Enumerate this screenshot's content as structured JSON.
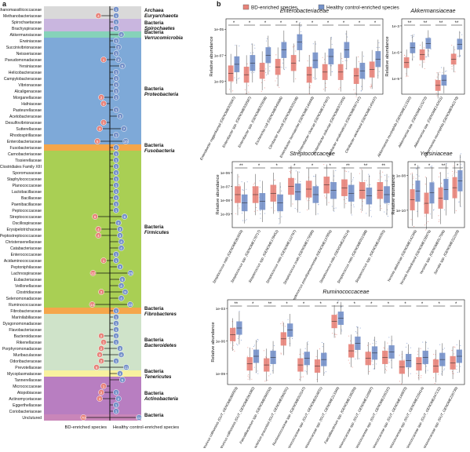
{
  "panels": {
    "a": "a",
    "b": "b"
  },
  "colors": {
    "bd": "#E8837A",
    "hc": "#7591C9",
    "proteo": "#7EA9D8",
    "firm": "#A9CF54",
    "bact": "#CFE3C9",
    "act": "#B87EC1",
    "verr": "#86D2B9",
    "fuso": "#F5A64B",
    "fibro": "#F5A64B",
    "teneri": "#F8F19F",
    "arch": "#D9D9D9",
    "spiro": "#C9B6DF",
    "unclass": "#C986B9"
  },
  "tree": {
    "x_labels": {
      "left": "BD-enriched species",
      "right": "Healthy control-enriched species"
    },
    "families": [
      {
        "name": "Methanomassiliicoccaceae",
        "bd": 0,
        "hc": 1
      },
      {
        "name": "Methanobacteriaceae",
        "bd": 4,
        "hc": 1
      },
      {
        "name": "Spirochaetaceae",
        "bd": 0,
        "hc": 1
      },
      {
        "name": "Brachyspiraceae",
        "bd": 0,
        "hc": 1
      },
      {
        "name": "Akkermansiaceae",
        "bd": 0,
        "hc": 4
      },
      {
        "name": "Erwiniaceae",
        "bd": 0,
        "hc": 1
      },
      {
        "name": "Succinivibrionaceae",
        "bd": 0,
        "hc": 2
      },
      {
        "name": "Neisseriaceae",
        "bd": 0,
        "hc": 1
      },
      {
        "name": "Pseudomonadaceae",
        "bd": 1,
        "hc": 2
      },
      {
        "name": "Yersiniaceae",
        "bd": 0,
        "hc": 5
      },
      {
        "name": "Helicobacteraceae",
        "bd": 0,
        "hc": 1
      },
      {
        "name": "Campylobacteraceae",
        "bd": 0,
        "hc": 1
      },
      {
        "name": "Vibrionaceae",
        "bd": 0,
        "hc": 1
      },
      {
        "name": "Alcaligenaceae",
        "bd": 0,
        "hc": 1
      },
      {
        "name": "Morganellaceae",
        "bd": 2,
        "hc": 1
      },
      {
        "name": "Hafniaceae",
        "bd": 1,
        "hc": 0
      },
      {
        "name": "Pasteurellaceae",
        "bd": 0,
        "hc": 1
      },
      {
        "name": "Acetobacteraceae",
        "bd": 0,
        "hc": 3
      },
      {
        "name": "Desulfovibrionaceae",
        "bd": 1,
        "hc": 0
      },
      {
        "name": "Sutterellaceae",
        "bd": 3,
        "hc": 7
      },
      {
        "name": "Rhodospirillaceae",
        "bd": 0,
        "hc": 1
      },
      {
        "name": "Enterobacteriaceae",
        "bd": 5,
        "hc": 10
      },
      {
        "name": "Fusobacteriaceae",
        "bd": 0,
        "hc": 1
      },
      {
        "name": "Carnobacteriaceae",
        "bd": 0,
        "hc": 1
      },
      {
        "name": "Tissierellaceae",
        "bd": 0,
        "hc": 1
      },
      {
        "name": "Clostridiales Family XIII",
        "bd": 0,
        "hc": 1
      },
      {
        "name": "Sporomusaceae",
        "bd": 0,
        "hc": 1
      },
      {
        "name": "Staphylococcaceae",
        "bd": 0,
        "hc": 1
      },
      {
        "name": "Planococcaceae",
        "bd": 0,
        "hc": 1
      },
      {
        "name": "Lactobacillaceae",
        "bd": 0,
        "hc": 1
      },
      {
        "name": "Bacillaceae",
        "bd": 0,
        "hc": 1
      },
      {
        "name": "Paenibacillaceae",
        "bd": 0,
        "hc": 1
      },
      {
        "name": "Peptococcaceae",
        "bd": 0,
        "hc": 1
      },
      {
        "name": "Streptococcaceae",
        "bd": 8,
        "hc": 8
      },
      {
        "name": "Oscillospiraceae",
        "bd": 0,
        "hc": 2
      },
      {
        "name": "Erysipelotrichaceae",
        "bd": 4,
        "hc": 3
      },
      {
        "name": "Peptostreptococcaceae",
        "bd": 4,
        "hc": 3
      },
      {
        "name": "Christensenellaceae",
        "bd": 0,
        "hc": 4
      },
      {
        "name": "Catabacteriaceae",
        "bd": 0,
        "hc": 4
      },
      {
        "name": "Enterococcaceae",
        "bd": 0,
        "hc": 1
      },
      {
        "name": "Acidaminococcaceae",
        "bd": 1,
        "hc": 1
      },
      {
        "name": "Peptoniphilaceae",
        "bd": 0,
        "hc": 3
      },
      {
        "name": "Lachnospiraceae",
        "bd": 12,
        "hc": 25
      },
      {
        "name": "Eubacteriaceae",
        "bd": 0,
        "hc": 5
      },
      {
        "name": "Veillonellaceae",
        "bd": 0,
        "hc": 4
      },
      {
        "name": "Clostridiaceae",
        "bd": 2,
        "hc": 9
      },
      {
        "name": "Selenomonadaceae",
        "bd": 0,
        "hc": 4
      },
      {
        "name": "Ruminococcaceae",
        "bd": 14,
        "hc": 23
      },
      {
        "name": "Fibrobacteraceae",
        "bd": 0,
        "hc": 1
      },
      {
        "name": "Marinilabiliaceae",
        "bd": 0,
        "hc": 1
      },
      {
        "name": "Dysgonomonadaceae",
        "bd": 0,
        "hc": 1
      },
      {
        "name": "Flavobacteriaceae",
        "bd": 0,
        "hc": 1
      },
      {
        "name": "Bacteroidaceae",
        "bd": 2,
        "hc": 1
      },
      {
        "name": "Rikenellaceae",
        "bd": 1,
        "hc": 1
      },
      {
        "name": "Porphyromonadaceae",
        "bd": 2,
        "hc": 3
      },
      {
        "name": "Muribaculaceae",
        "bd": 3,
        "hc": 4
      },
      {
        "name": "Odoribacteraceae",
        "bd": 2,
        "hc": 1
      },
      {
        "name": "Prevotellaceae",
        "bd": 6,
        "hc": 11
      },
      {
        "name": "Mycoplasmataceae",
        "bd": 0,
        "hc": 3
      },
      {
        "name": "Tannerellaceae",
        "bd": 0,
        "hc": 5
      },
      {
        "name": "Micrococcaceae",
        "bd": 1,
        "hc": 0
      },
      {
        "name": "Atopobiaceae",
        "bd": 2,
        "hc": 1
      },
      {
        "name": "Actinomycetaceae",
        "bd": 3,
        "hc": 2
      },
      {
        "name": "Eggerthellaceae",
        "bd": 0,
        "hc": 1
      },
      {
        "name": "Coriobacteriaceae",
        "bd": 0,
        "hc": 1
      },
      {
        "name": "Unclutured",
        "bd": 70,
        "hc": 114
      }
    ],
    "bands": [
      {
        "from": 0,
        "to": 1,
        "color": "arch",
        "phylum": "Archaea",
        "sub": "Euryarchaeota"
      },
      {
        "from": 2,
        "to": 3,
        "color": "spiro",
        "phylum": "Bacteria",
        "sub": "Spirochaetes"
      },
      {
        "from": 4,
        "to": 4,
        "color": "verr",
        "phylum": "Bacteria",
        "sub": "Verrucomicrobia"
      },
      {
        "from": 5,
        "to": 21,
        "color": "proteo",
        "phylum": "Bacteria",
        "sub": "Proteobacteria"
      },
      {
        "from": 22,
        "to": 22,
        "color": "fuso",
        "phylum": "Bacteria",
        "sub": "Fusobacteria"
      },
      {
        "from": 23,
        "to": 47,
        "color": "firm",
        "phylum": "Bacteria",
        "sub": "Firmicutes"
      },
      {
        "from": 48,
        "to": 48,
        "color": "fibro",
        "phylum": "Bacteria",
        "sub": "Fibrobacteres"
      },
      {
        "from": 49,
        "to": 57,
        "color": "bact",
        "phylum": "Bacteria",
        "sub": "Bacteroidetes"
      },
      {
        "from": 58,
        "to": 58,
        "color": "teneri",
        "phylum": "Bacteria",
        "sub": "Tenericutes"
      },
      {
        "from": 59,
        "to": 64,
        "color": "act",
        "phylum": "Bacteria",
        "sub": "Actinobacteria"
      },
      {
        "from": 65,
        "to": 65,
        "color": "unclass",
        "phylum": "Bacteria",
        "sub": ""
      }
    ]
  },
  "legend": {
    "bd": "BD-enriched species",
    "hc": "Healthy control-enriched species"
  },
  "boxplots": [
    {
      "title": "Enterobacteriaceae",
      "ylabel": "Relative abundance",
      "ticks": [
        "1e-05",
        "1e-07",
        "1e-09"
      ],
      "species": [
        "Enterobacter roggenkampii (GENOME035047)",
        "Enterobacter spp. (GENOME030587)",
        "Enterobacter spp. (GENOME035038)",
        "Escherichia coli (GENOME049686)",
        "Citrobacter freundii (GENOME035198)",
        "Enterobacter hormaechei (GENOME149440)",
        "Enterobacter cloacae (GENOME147497)",
        "Enterobacter asburiae (GENOME072455)",
        "Citrobacter amalonaticus (GENOME097147)",
        "Citrobacter werkmanii (GENOME145437)"
      ],
      "stars": [
        "*",
        "*",
        "*",
        "*",
        "*",
        "*",
        "*",
        "*",
        "*",
        "*"
      ],
      "medians": {
        "bd": [
          -8.4,
          -8.5,
          -8.2,
          -7.9,
          -7.6,
          -8.5,
          -8.3,
          -8.3,
          -8.6,
          -8.1
        ],
        "hc": [
          -7.7,
          -7.6,
          -7.0,
          -6.6,
          -6.0,
          -7.4,
          -7.1,
          -6.6,
          -8.2,
          -7.3
        ]
      }
    },
    {
      "title": "Akkermansiaceae",
      "ylabel": "Relative abundance",
      "ticks": [
        "1e-3",
        "1e-6",
        "1e-9"
      ],
      "species": [
        "Akkermansia muciniphila (GENOME113322)",
        "Akkermansia spp. (GENOME115272)",
        "Akkermansia spp. (GENOME142411)",
        "Akkermansia muciniphila (GENOME042170)"
      ],
      "stars": [
        "**",
        "**",
        "**",
        "**"
      ],
      "medians": {
        "bd": [
          -7.2,
          -6.3,
          -9.8,
          -6.8
        ],
        "hc": [
          -5.5,
          -5.0,
          -9.2,
          -5.1
        ]
      }
    },
    {
      "title": "Streptococcaceae",
      "ylabel": "Relative abundance",
      "ticks": [
        "1e-06",
        "1e-07",
        "1e-08",
        "1e-09"
      ],
      "species": [
        "Streptococcus mitis (GENOME003559)",
        "Streptococcus spp. (GENOME178717)",
        "Streptococcus spp. (GENOME178452)",
        "Streptococcus mitis (GENOME122767)",
        "Streptococcus oralis (GENOME179589)",
        "Streptococcus pseudopneumoniae (GENOME137856)",
        "Streptococcus mitis (GENOME235114)",
        "Streptococcus mitis (GENOME031588)",
        "Streptococcus spp. (GENOME249355)"
      ],
      "stars": [
        "**",
        "*",
        "*",
        "*",
        "*",
        "*",
        "**",
        "**",
        "**"
      ],
      "medians": {
        "bd": [
          -7.6,
          -7.6,
          -7.5,
          -7.0,
          -7.2,
          -6.9,
          -7.1,
          -7.3,
          -7.3
        ],
        "hc": [
          -8.2,
          -8.1,
          -8.2,
          -7.4,
          -7.6,
          -7.3,
          -7.5,
          -7.7,
          -7.6
        ]
      }
    },
    {
      "title": "Yersiniaceae",
      "ylabel": "Relative abundance",
      "ticks": [
        "1e-08",
        "1e-10"
      ],
      "species": [
        "Yersinia aleksiciae (GENOME142346)",
        "Yersinia frederiksenii (GENOME158476)",
        "Yersinia spp. (GENOME017596)",
        "Serratia spp. (GENOME222103)"
      ],
      "stars": [
        "*",
        "*",
        "**",
        "*"
      ],
      "medians": {
        "bd": [
          -9.4,
          -9.6,
          -9.3,
          -8.7
        ],
        "hc": [
          -8.9,
          -9.0,
          -8.8,
          -8.3
        ]
      }
    },
    {
      "title": "Ruminococcaceae",
      "ylabel": "Relative abundance",
      "ticks": [
        "1e-03",
        "1e-06",
        "1e-09"
      ],
      "species": [
        "Anaerotruncus colihominis (GUT_GENOME000503)",
        "Anaerotruncus colihominis (GUT_GENOME093382)",
        "Faecalibacterium spp. (GENOME096552)",
        "Faecalibacterium prausnitzii (GUT_GENOME096291)",
        "Ruminococcaceae spp. (GENOME010147)",
        "Ruminococcaceae spp. (GUT_GENOME016831)",
        "Ruminococcaceae spp. (GUT_GENOME213349)",
        "Faecalibacterium spp. (GENOME138289)",
        "Ruminococcaceae spp. (GUT_GENOME120587)",
        "Ruminococcaceae spp. (GUT_GENOME236337)",
        "Ruminococcaceae spp. (GUT_GENOME140033)",
        "Ruminococcaceae spp. (GUT_GENOME239414)",
        "Ruminococcaceae spp. (GUT_GENOME247132)",
        "Ruminococcaceae spp. (GUT_GENOME236739)"
      ],
      "stars": [
        "**",
        "*",
        "**",
        "*",
        "*",
        "*",
        "*",
        "*",
        "*",
        "*",
        "*",
        "*",
        "*",
        "*"
      ],
      "medians": {
        "bd": [
          -5.4,
          -8.1,
          -8.2,
          -5.8,
          -8.2,
          -8.3,
          -4.2,
          -6.9,
          -7.6,
          -7.5,
          -8.4,
          -8.1,
          -8.3,
          -8.0
        ],
        "hc": [
          -4.8,
          -7.4,
          -7.5,
          -5.0,
          -7.6,
          -7.7,
          -3.9,
          -6.2,
          -7.1,
          -7.0,
          -7.8,
          -7.5,
          -7.7,
          -7.4
        ]
      }
    }
  ]
}
